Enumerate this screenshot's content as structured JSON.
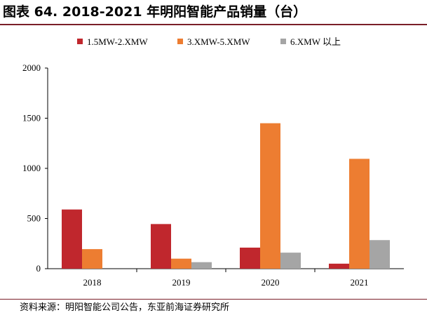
{
  "header": {
    "title": "图表 64. 2018-2021 年明阳智能产品销量（台）"
  },
  "footer": {
    "source": "资料来源：明阳智能公司公告，东亚前海证券研究所"
  },
  "chart_data": {
    "type": "bar",
    "title": "图表 64. 2018-2021 年明阳智能产品销量（台）",
    "xlabel": "",
    "ylabel": "",
    "categories": [
      "2018",
      "2019",
      "2020",
      "2021"
    ],
    "series": [
      {
        "name": "1.5MW-2.XMW",
        "color": "#c0272d",
        "values": [
          590,
          445,
          210,
          50
        ]
      },
      {
        "name": "3.XMW-5.XMW",
        "color": "#ed7d31",
        "values": [
          195,
          100,
          1450,
          1095
        ]
      },
      {
        "name": "6.XMW 以上",
        "color": "#a5a5a5",
        "values": [
          0,
          65,
          160,
          285
        ]
      }
    ],
    "ylim": [
      0,
      2000
    ],
    "yticks": [
      "0",
      "500",
      "1000",
      "1500",
      "2000"
    ],
    "grid": false,
    "legend": "top"
  }
}
